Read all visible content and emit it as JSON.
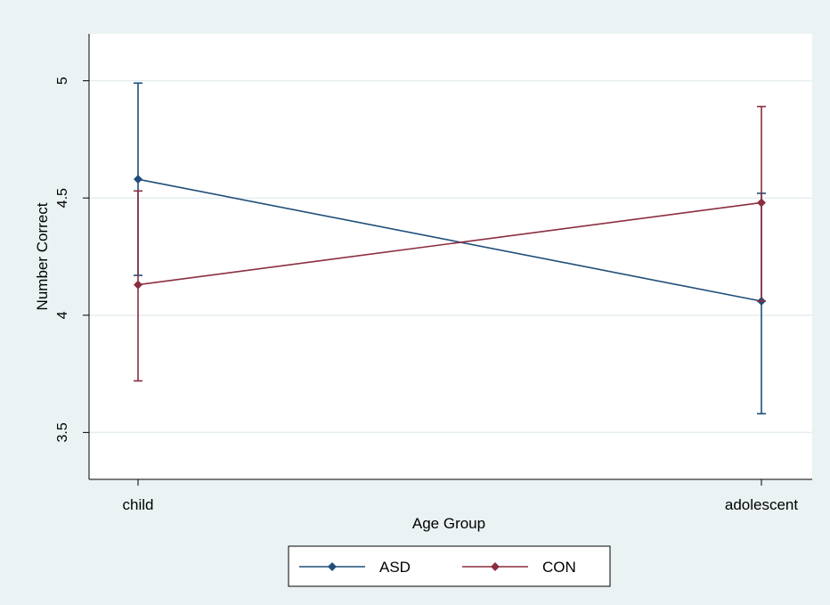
{
  "chart_data": {
    "type": "line",
    "xlabel": "Age Group",
    "ylabel": "Number Correct",
    "categories": [
      "child",
      "adolescent"
    ],
    "yticks": [
      "3.5",
      "4",
      "4.5",
      "5"
    ],
    "ylim": [
      3.3,
      5.2
    ],
    "grid": true,
    "legend_position": "bottom-center",
    "series": [
      {
        "name": "ASD",
        "color": "#1f4e79",
        "values": [
          4.58,
          4.06
        ],
        "ci_low": [
          4.17,
          3.58
        ],
        "ci_high": [
          4.99,
          4.52
        ]
      },
      {
        "name": "CON",
        "color": "#8b2e3f",
        "values": [
          4.13,
          4.48
        ],
        "ci_low": [
          3.72,
          4.06
        ],
        "ci_high": [
          4.53,
          4.89
        ]
      }
    ],
    "colors": {
      "frame_background": "#eaf2f3",
      "plot_background": "#ffffff",
      "gridline": "#e6eef0",
      "axis": "#000000"
    }
  }
}
